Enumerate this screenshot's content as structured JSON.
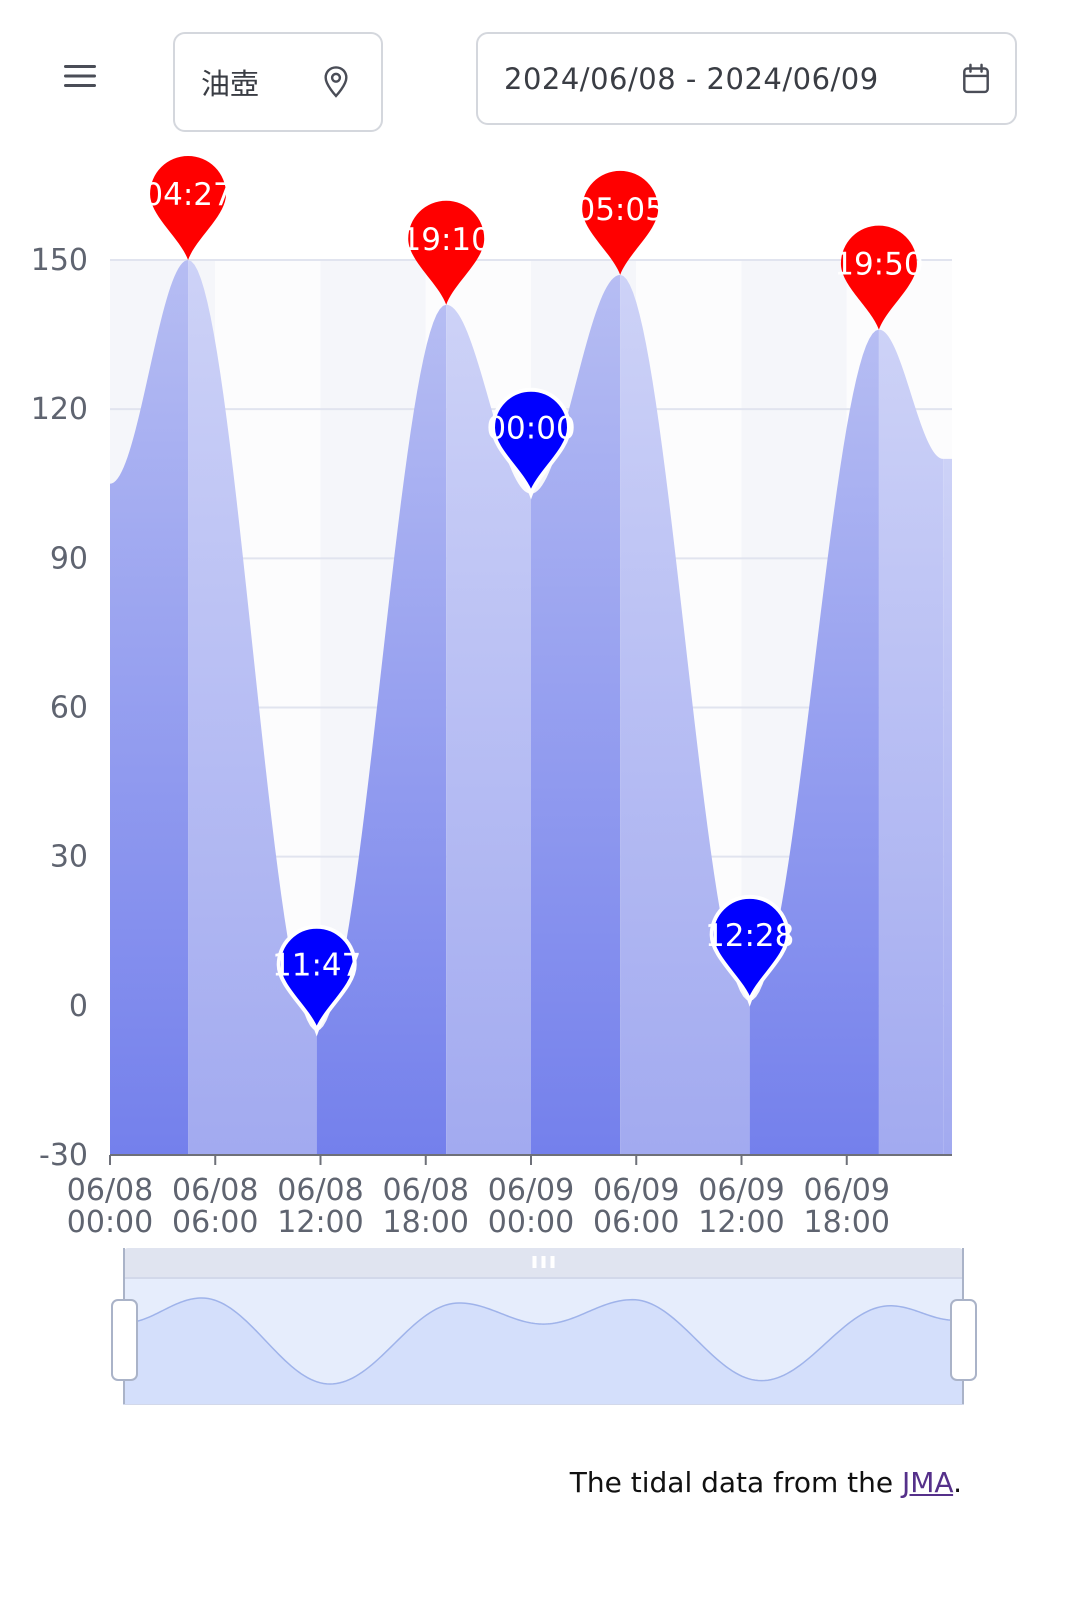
{
  "header": {
    "menu_icon": "menu-icon",
    "location": {
      "name": "油壺",
      "icon": "location-pin-icon"
    },
    "date_range": {
      "value": "2024/06/08 - 2024/06/09",
      "icon": "calendar-icon"
    }
  },
  "chart_data": {
    "type": "area",
    "title": "",
    "xlabel": "",
    "ylabel": "",
    "x_range": [
      "2024-06-08 00:00",
      "2024-06-10 00:00"
    ],
    "ylim": [
      -30,
      150
    ],
    "y_ticks": [
      150,
      120,
      90,
      60,
      30,
      0,
      -30
    ],
    "x_ticks": [
      {
        "time": "2024-06-08 00:00",
        "label_line1": "06/08",
        "label_line2": "00:00"
      },
      {
        "time": "2024-06-08 06:00",
        "label_line1": "06/08",
        "label_line2": "06:00"
      },
      {
        "time": "2024-06-08 12:00",
        "label_line1": "06/08",
        "label_line2": "12:00"
      },
      {
        "time": "2024-06-08 18:00",
        "label_line1": "06/08",
        "label_line2": "18:00"
      },
      {
        "time": "2024-06-09 00:00",
        "label_line1": "06/09",
        "label_line2": "00:00"
      },
      {
        "time": "2024-06-09 06:00",
        "label_line1": "06/09",
        "label_line2": "06:00"
      },
      {
        "time": "2024-06-09 12:00",
        "label_line1": "06/09",
        "label_line2": "12:00"
      },
      {
        "time": "2024-06-09 18:00",
        "label_line1": "06/09",
        "label_line2": "18:00"
      }
    ],
    "grid": true,
    "series": [
      {
        "values": [
          {
            "x": "2024-06-08 00:00",
            "y": 105
          },
          {
            "x": "2024-06-08 04:27",
            "y": 150
          },
          {
            "x": "2024-06-08 11:47",
            "y": -5
          },
          {
            "x": "2024-06-08 19:10",
            "y": 141
          },
          {
            "x": "2024-06-09 00:00",
            "y": 103
          },
          {
            "x": "2024-06-09 05:05",
            "y": 147
          },
          {
            "x": "2024-06-09 12:28",
            "y": 1
          },
          {
            "x": "2024-06-09 19:50",
            "y": 136
          },
          {
            "x": "2024-06-09 23:30",
            "y": 110
          }
        ]
      }
    ],
    "markers": [
      {
        "time": "2024-06-08 04:27",
        "label": "04:27",
        "value": 150,
        "type": "high",
        "color": "#ff0000"
      },
      {
        "time": "2024-06-08 11:47",
        "label": "11:47",
        "value": -5,
        "type": "low",
        "color": "#0000ff"
      },
      {
        "time": "2024-06-08 19:10",
        "label": "19:10",
        "value": 141,
        "type": "high",
        "color": "#ff0000"
      },
      {
        "time": "2024-06-09 00:00",
        "label": "00:00",
        "value": 103,
        "type": "low",
        "color": "#0000ff"
      },
      {
        "time": "2024-06-09 05:05",
        "label": "05:05",
        "value": 147,
        "type": "high",
        "color": "#ff0000"
      },
      {
        "time": "2024-06-09 12:28",
        "label": "12:28",
        "value": 1,
        "type": "low",
        "color": "#0000ff"
      },
      {
        "time": "2024-06-09 19:50",
        "label": "19:50",
        "value": 136,
        "type": "high",
        "color": "#ff0000"
      }
    ],
    "colors": {
      "high_marker": "#ff0000",
      "low_marker": "#0000ff",
      "area_top": "#c8cdf6",
      "area_bottom": "#7480ec",
      "rising_top": "#b4bbf3",
      "rising_bottom": "#7480ec"
    },
    "data_zoom": {
      "start_percent": 0,
      "end_percent": 100
    }
  },
  "attribution": {
    "prefix": "The tidal data from the ",
    "link_text": "JMA",
    "suffix": "."
  }
}
